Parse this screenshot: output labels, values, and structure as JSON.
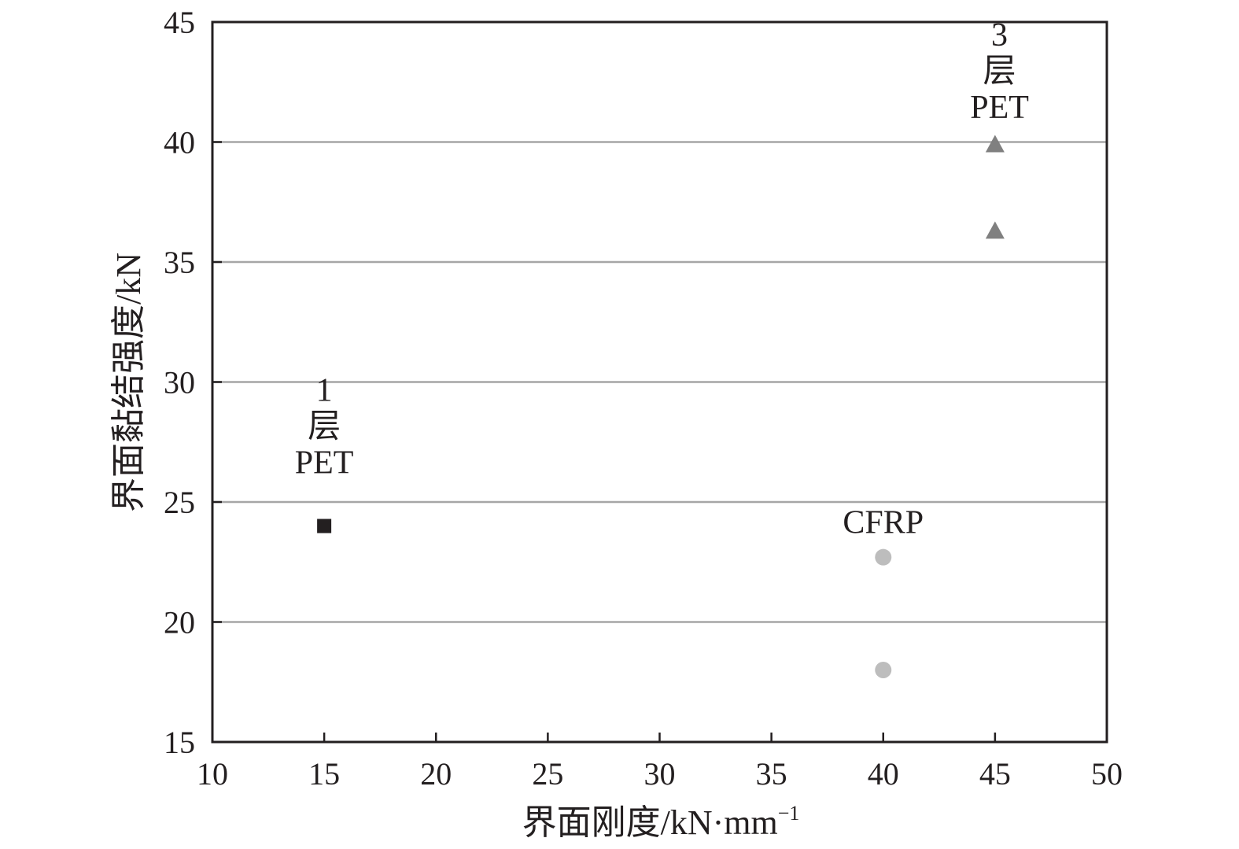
{
  "chart_data": {
    "type": "scatter",
    "title": "",
    "xlabel": "界面刚度/kN·mm",
    "xlabel_superscript": "−1",
    "ylabel": "界面黏结强度/kN",
    "xlim": [
      10,
      50
    ],
    "ylim": [
      15,
      45
    ],
    "xticks": [
      "10",
      "15",
      "20",
      "25",
      "30",
      "35",
      "40",
      "45",
      "50"
    ],
    "yticks": [
      "15",
      "20",
      "25",
      "30",
      "35",
      "40",
      "45"
    ],
    "grid": "horizontal",
    "legend": "none",
    "series": [
      {
        "marker": "square",
        "color": "#231f20",
        "points": [
          {
            "x": 15,
            "y": 24
          }
        ]
      },
      {
        "marker": "circle",
        "color": "#bdbdbd",
        "points": [
          {
            "x": 40,
            "y": 22.7
          },
          {
            "x": 40,
            "y": 18
          }
        ]
      },
      {
        "marker": "triangle",
        "color": "#808080",
        "points": [
          {
            "x": 45,
            "y": 39.9
          },
          {
            "x": 45,
            "y": 36.3
          }
        ]
      }
    ],
    "annotations": [
      {
        "lines": [
          "1",
          "层",
          "PET"
        ],
        "x": 15,
        "y": 26.2,
        "anchor": "bottom"
      },
      {
        "lines": [
          "CFRP"
        ],
        "x": 40,
        "y": 23.7,
        "anchor": "bottom"
      },
      {
        "lines": [
          "3",
          "层",
          "PET"
        ],
        "x": 45.2,
        "y": 41,
        "anchor": "bottom"
      }
    ]
  }
}
